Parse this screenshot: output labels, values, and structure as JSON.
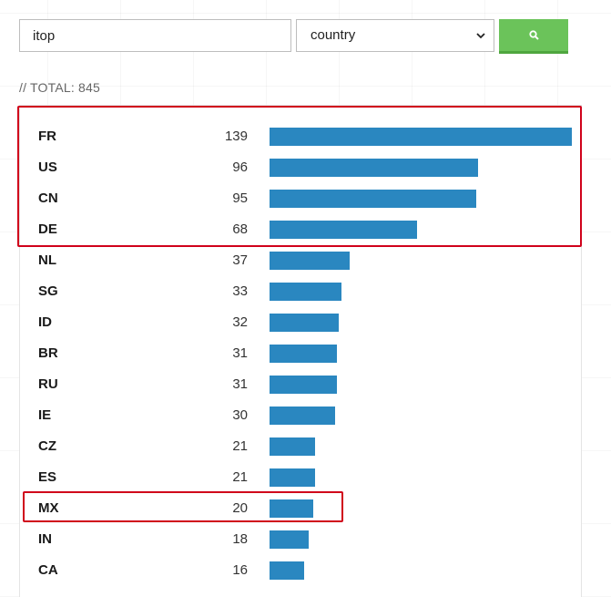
{
  "search": {
    "query": "itop",
    "field": "country",
    "options": [
      "country"
    ]
  },
  "total": {
    "text": "// TOTAL: 845"
  },
  "results": [
    {
      "code": "FR",
      "count": 139
    },
    {
      "code": "US",
      "count": 96
    },
    {
      "code": "CN",
      "count": 95
    },
    {
      "code": "DE",
      "count": 68
    },
    {
      "code": "NL",
      "count": 37
    },
    {
      "code": "SG",
      "count": 33
    },
    {
      "code": "ID",
      "count": 32
    },
    {
      "code": "BR",
      "count": 31
    },
    {
      "code": "RU",
      "count": 31
    },
    {
      "code": "IE",
      "count": 30
    },
    {
      "code": "CZ",
      "count": 21
    },
    {
      "code": "ES",
      "count": 21
    },
    {
      "code": "MX",
      "count": 20
    },
    {
      "code": "IN",
      "count": 18
    },
    {
      "code": "CA",
      "count": 16
    }
  ],
  "colors": {
    "bar": "#2a87c0",
    "search_button": "#6bc35a",
    "highlight": "#d0021b"
  },
  "icons": {
    "search_button": "search-icon",
    "select": "chevron-down-icon"
  },
  "highlights": [
    {
      "name": "highlight-top-four",
      "first_row": 0,
      "last_row": 3
    },
    {
      "name": "highlight-mx-row",
      "first_row": 12,
      "last_row": 12
    }
  ]
}
